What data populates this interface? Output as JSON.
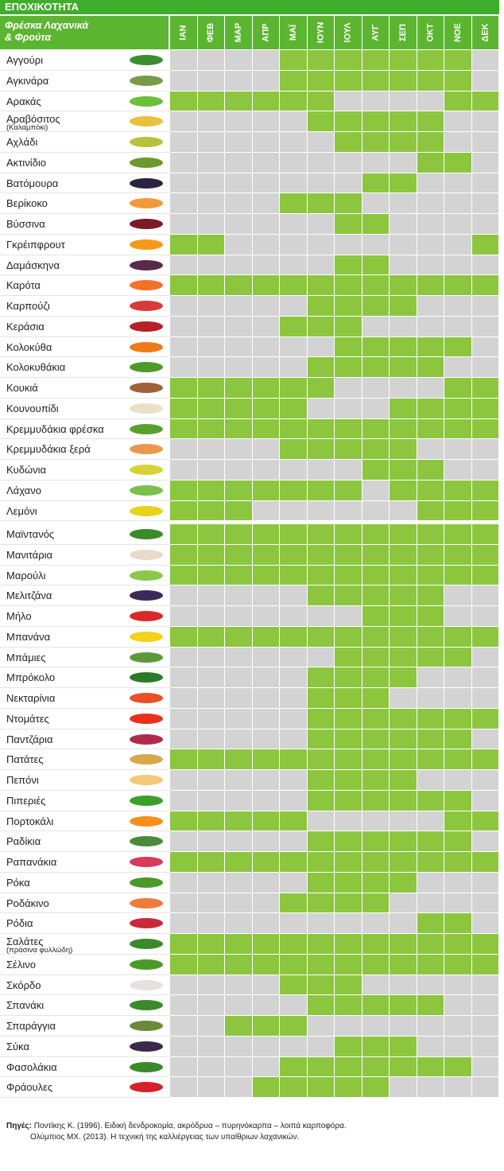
{
  "header": {
    "title": "ΕΠΟΧΙΚΟΤΗΤΑ",
    "label_lines": [
      "Φρέσκα Λαχανικά",
      "& Φρούτα"
    ],
    "months": [
      "ΙΑΝ",
      "ΦΕΒ",
      "ΜΑΡ",
      "ΑΠΡ",
      "ΜΑΪ",
      "ΙΟΥΝ",
      "ΙΟΥΛ",
      "ΑΥΓ",
      "ΣΕΠ",
      "ΟΚΤ",
      "ΝΟΕ",
      "ΔΕΚ"
    ]
  },
  "colors": {
    "in_season": "#8cc63f",
    "off_season": "#d3d3d3"
  },
  "table": {
    "rows": [
      {
        "name": "Αγγούρι",
        "season": [
          0,
          0,
          0,
          0,
          1,
          1,
          1,
          1,
          1,
          1,
          1,
          0
        ]
      },
      {
        "name": "Αγκινάρα",
        "season": [
          0,
          0,
          0,
          0,
          1,
          1,
          1,
          1,
          1,
          1,
          1,
          0
        ]
      },
      {
        "name": "Αρακάς",
        "season": [
          1,
          1,
          1,
          1,
          1,
          1,
          0,
          0,
          0,
          0,
          1,
          1
        ]
      },
      {
        "name": "Αραβόσιτος",
        "note": "(Καλαμπόκι)",
        "season": [
          0,
          0,
          0,
          0,
          0,
          1,
          1,
          1,
          1,
          1,
          0,
          0
        ]
      },
      {
        "name": "Αχλάδι",
        "season": [
          0,
          0,
          0,
          0,
          0,
          0,
          1,
          1,
          1,
          1,
          0,
          0
        ]
      },
      {
        "name": "Ακτινίδιο",
        "season": [
          0,
          0,
          0,
          0,
          0,
          0,
          0,
          0,
          0,
          1,
          1,
          0
        ]
      },
      {
        "name": "Βατόμουρα",
        "season": [
          0,
          0,
          0,
          0,
          0,
          0,
          0,
          1,
          1,
          0,
          0,
          0
        ]
      },
      {
        "name": "Βερίκοκο",
        "season": [
          0,
          0,
          0,
          0,
          1,
          1,
          1,
          0,
          0,
          0,
          0,
          0
        ]
      },
      {
        "name": "Βύσσινα",
        "season": [
          0,
          0,
          0,
          0,
          0,
          0,
          1,
          1,
          0,
          0,
          0,
          0
        ]
      },
      {
        "name": "Γκρέιπφρουτ",
        "season": [
          1,
          1,
          0,
          0,
          0,
          0,
          0,
          0,
          0,
          0,
          0,
          1
        ]
      },
      {
        "name": "Δαμάσκηνα",
        "season": [
          0,
          0,
          0,
          0,
          0,
          0,
          1,
          1,
          0,
          0,
          0,
          0
        ]
      },
      {
        "name": "Καρότα",
        "season": [
          1,
          1,
          1,
          1,
          1,
          1,
          1,
          1,
          1,
          1,
          1,
          1
        ]
      },
      {
        "name": "Καρπούζι",
        "season": [
          0,
          0,
          0,
          0,
          0,
          1,
          1,
          1,
          1,
          0,
          0,
          0
        ]
      },
      {
        "name": "Κεράσια",
        "season": [
          0,
          0,
          0,
          0,
          1,
          1,
          1,
          0,
          0,
          0,
          0,
          0
        ]
      },
      {
        "name": "Κολοκύθα",
        "season": [
          0,
          0,
          0,
          0,
          0,
          0,
          1,
          1,
          1,
          1,
          1,
          0
        ]
      },
      {
        "name": "Κολοκυθάκια",
        "season": [
          0,
          0,
          0,
          0,
          0,
          1,
          1,
          1,
          1,
          1,
          0,
          0
        ]
      },
      {
        "name": "Κουκιά",
        "season": [
          1,
          1,
          1,
          1,
          1,
          1,
          0,
          0,
          0,
          0,
          1,
          1
        ]
      },
      {
        "name": "Κουνουπίδι",
        "season": [
          1,
          1,
          1,
          1,
          1,
          0,
          0,
          0,
          1,
          1,
          1,
          1
        ]
      },
      {
        "name": "Κρεμμυδάκια φρέσκα",
        "season": [
          1,
          1,
          1,
          1,
          1,
          1,
          1,
          1,
          1,
          1,
          1,
          1
        ]
      },
      {
        "name": "Κρεμμυδάκια ξερά",
        "season": [
          0,
          0,
          0,
          0,
          1,
          1,
          1,
          1,
          1,
          0,
          0,
          0
        ]
      },
      {
        "name": "Κυδώνια",
        "season": [
          0,
          0,
          0,
          0,
          0,
          0,
          0,
          1,
          1,
          1,
          0,
          0
        ]
      },
      {
        "name": "Λάχανο",
        "season": [
          1,
          1,
          1,
          1,
          1,
          1,
          1,
          0,
          1,
          1,
          1,
          1
        ]
      },
      {
        "name": "Λεμόνι",
        "season": [
          1,
          1,
          1,
          0,
          0,
          0,
          0,
          0,
          0,
          1,
          1,
          1
        ]
      },
      {
        "name": "Μαϊντανός",
        "season": [
          1,
          1,
          1,
          1,
          1,
          1,
          1,
          1,
          1,
          1,
          1,
          1
        ]
      },
      {
        "name": "Μανιτάρια",
        "season": [
          1,
          1,
          1,
          1,
          1,
          1,
          1,
          1,
          1,
          1,
          1,
          1
        ]
      },
      {
        "name": "Μαρούλι",
        "season": [
          1,
          1,
          1,
          1,
          1,
          1,
          1,
          1,
          1,
          1,
          1,
          1
        ]
      },
      {
        "name": "Μελιτζάνα",
        "season": [
          0,
          0,
          0,
          0,
          0,
          1,
          1,
          1,
          1,
          1,
          0,
          0
        ]
      },
      {
        "name": "Μήλο",
        "season": [
          0,
          0,
          0,
          0,
          0,
          0,
          0,
          1,
          1,
          1,
          0,
          0
        ]
      },
      {
        "name": "Μπανάνα",
        "season": [
          1,
          1,
          1,
          1,
          1,
          1,
          1,
          1,
          1,
          1,
          1,
          1
        ]
      },
      {
        "name": "Μπάμιες",
        "season": [
          0,
          0,
          0,
          0,
          0,
          0,
          1,
          1,
          1,
          1,
          1,
          0
        ]
      },
      {
        "name": "Μπρόκολο",
        "season": [
          0,
          0,
          0,
          0,
          0,
          1,
          1,
          1,
          1,
          0,
          0,
          0
        ]
      },
      {
        "name": "Νεκταρίνια",
        "season": [
          0,
          0,
          0,
          0,
          0,
          1,
          1,
          1,
          0,
          0,
          0,
          0
        ]
      },
      {
        "name": "Ντομάτες",
        "season": [
          0,
          0,
          0,
          0,
          0,
          1,
          1,
          1,
          1,
          1,
          1,
          1
        ]
      },
      {
        "name": "Παντζάρια",
        "season": [
          0,
          0,
          0,
          0,
          0,
          1,
          1,
          1,
          1,
          1,
          1,
          0
        ]
      },
      {
        "name": "Πατάτες",
        "season": [
          1,
          1,
          1,
          1,
          1,
          1,
          1,
          1,
          1,
          1,
          1,
          1
        ]
      },
      {
        "name": "Πεπόνι",
        "season": [
          0,
          0,
          0,
          0,
          0,
          1,
          1,
          1,
          1,
          0,
          0,
          0
        ]
      },
      {
        "name": "Πιπεριές",
        "season": [
          0,
          0,
          0,
          0,
          0,
          1,
          1,
          1,
          1,
          1,
          1,
          0
        ]
      },
      {
        "name": "Πορτοκάλι",
        "season": [
          1,
          1,
          1,
          1,
          1,
          0,
          0,
          0,
          0,
          0,
          1,
          1
        ]
      },
      {
        "name": "Ραδίκια",
        "season": [
          0,
          0,
          0,
          0,
          0,
          1,
          1,
          1,
          1,
          1,
          1,
          0
        ]
      },
      {
        "name": "Ραπανάκια",
        "season": [
          1,
          1,
          1,
          1,
          1,
          1,
          1,
          1,
          1,
          1,
          1,
          1
        ]
      },
      {
        "name": "Ρόκα",
        "season": [
          0,
          0,
          0,
          0,
          0,
          1,
          1,
          1,
          1,
          0,
          0,
          0
        ]
      },
      {
        "name": "Ροδάκινο",
        "season": [
          0,
          0,
          0,
          0,
          1,
          1,
          1,
          1,
          0,
          0,
          0,
          0
        ]
      },
      {
        "name": "Ρόδια",
        "season": [
          0,
          0,
          0,
          0,
          0,
          0,
          0,
          0,
          0,
          1,
          1,
          0
        ]
      },
      {
        "name": "Σαλάτες",
        "note": "(πράσινα φυλλώδη)",
        "season": [
          1,
          1,
          1,
          1,
          1,
          1,
          1,
          1,
          1,
          1,
          1,
          1
        ]
      },
      {
        "name": "Σέλινο",
        "season": [
          1,
          1,
          1,
          1,
          1,
          1,
          1,
          1,
          1,
          1,
          1,
          1
        ]
      },
      {
        "name": "Σκόρδο",
        "season": [
          0,
          0,
          0,
          0,
          1,
          1,
          1,
          0,
          0,
          0,
          0,
          0
        ]
      },
      {
        "name": "Σπανάκι",
        "season": [
          0,
          0,
          0,
          0,
          0,
          1,
          1,
          1,
          1,
          1,
          0,
          0
        ]
      },
      {
        "name": "Σπαράγγια",
        "season": [
          0,
          0,
          1,
          1,
          1,
          0,
          0,
          0,
          0,
          0,
          0,
          0
        ]
      },
      {
        "name": "Σύκα",
        "season": [
          0,
          0,
          0,
          0,
          0,
          0,
          1,
          1,
          1,
          0,
          0,
          0
        ]
      },
      {
        "name": "Φασολάκια",
        "season": [
          0,
          0,
          0,
          0,
          1,
          1,
          1,
          1,
          1,
          1,
          1,
          0
        ]
      },
      {
        "name": "Φράουλες",
        "season": [
          0,
          0,
          0,
          1,
          1,
          1,
          1,
          1,
          0,
          0,
          0,
          0
        ]
      }
    ]
  },
  "footer": {
    "label": "Πηγές:",
    "lines": [
      "Ποντίκης Κ. (1996). Ειδική δενδροκομία, ακρόδρυα – πυρηνόκαρπα – λοιπά καρποφόρα.",
      "Ολύμπιος ΜΧ. (2013). Η τεχνική της καλλιέργειας των υπαίθριων λαχανικών."
    ]
  }
}
